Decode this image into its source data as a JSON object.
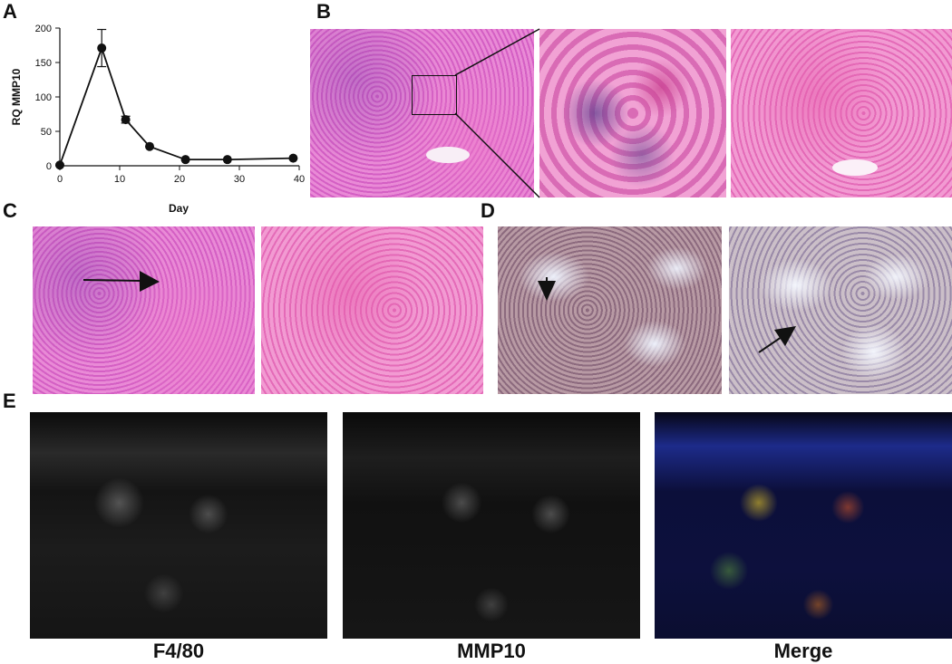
{
  "panel_letters": {
    "a": "A",
    "b": "B",
    "c": "C",
    "d": "D",
    "e": "E"
  },
  "captions": {
    "f480": "F4/80",
    "mmp10": "MMP10",
    "merge": "Merge"
  },
  "chart_data": {
    "type": "line",
    "xlabel": "Day",
    "ylabel": "RQ MMP10",
    "xlim": [
      0,
      40
    ],
    "ylim": [
      0,
      200
    ],
    "xticks": [
      0,
      10,
      20,
      30,
      40
    ],
    "yticks": [
      0,
      50,
      100,
      150,
      200
    ],
    "x": [
      0,
      7,
      11,
      15,
      21,
      28,
      39
    ],
    "y": [
      1,
      171,
      67,
      28,
      9,
      9,
      11
    ],
    "error": [
      0,
      27,
      5,
      0,
      0,
      0,
      0
    ],
    "grid": false,
    "color": "#111111"
  }
}
